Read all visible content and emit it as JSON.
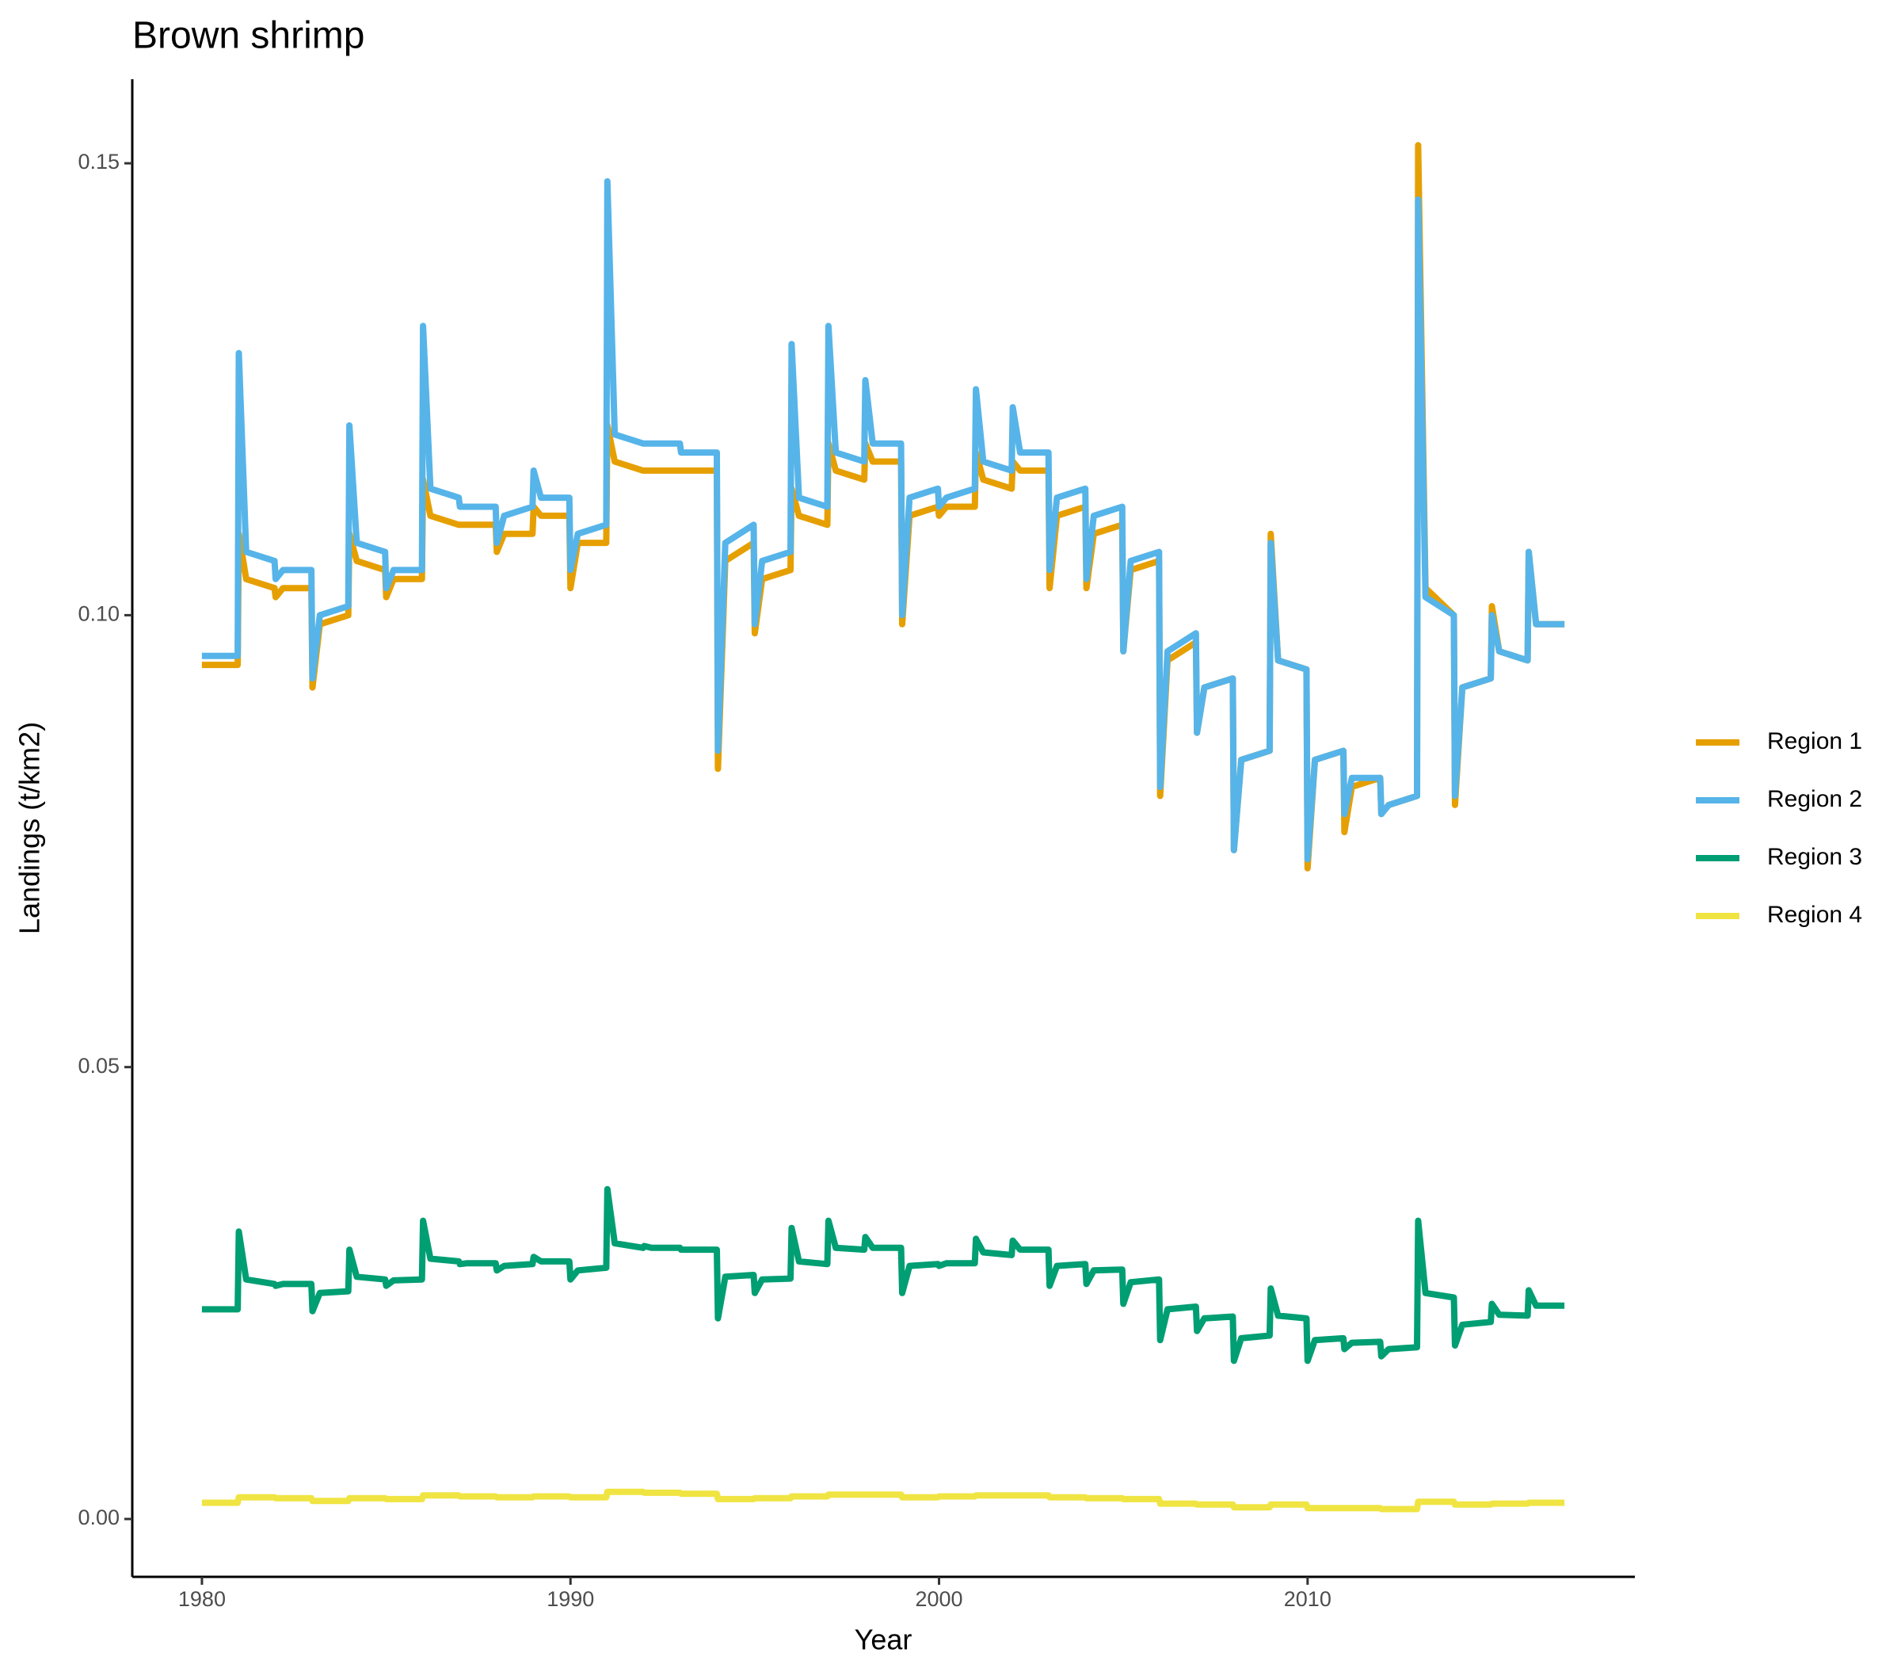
{
  "chart_data": {
    "type": "line",
    "title": "Brown shrimp",
    "x_label": "Year",
    "y_label": "Landings (t/km2)",
    "xlim": [
      1978.11,
      2018.88
    ],
    "ylim": [
      -0.0064,
      0.1593
    ],
    "xticks": [
      1980,
      1990,
      2000,
      2010
    ],
    "yticks": [
      {
        "value": 0,
        "label": "0.00"
      },
      {
        "value": 0.05,
        "label": "0.05"
      },
      {
        "value": 0.1,
        "label": "0.10"
      },
      {
        "value": 0.15,
        "label": "0.15"
      }
    ],
    "legend": "right",
    "x": [
      1980,
      1980.2,
      1980.97,
      1981,
      1981.2,
      1981.97,
      1982,
      1982.2,
      1982.97,
      1983,
      1983.2,
      1983.97,
      1984,
      1984.2,
      1984.97,
      1985,
      1985.2,
      1985.97,
      1986,
      1986.2,
      1986.97,
      1987,
      1987.2,
      1987.97,
      1988,
      1988.2,
      1988.97,
      1989,
      1989.2,
      1989.97,
      1990,
      1990.2,
      1990.97,
      1991,
      1991.2,
      1991.97,
      1992,
      1992.2,
      1992.97,
      1993,
      1993.2,
      1993.97,
      1994,
      1994.2,
      1994.97,
      1995,
      1995.2,
      1995.97,
      1996,
      1996.2,
      1996.97,
      1997,
      1997.2,
      1997.97,
      1998,
      1998.2,
      1998.97,
      1999,
      1999.2,
      1999.97,
      2000,
      2000.2,
      2000.97,
      2001,
      2001.2,
      2001.97,
      2002,
      2002.2,
      2002.97,
      2003,
      2003.2,
      2003.97,
      2004,
      2004.2,
      2004.97,
      2005,
      2005.2,
      2005.97,
      2006,
      2006.2,
      2006.97,
      2007,
      2007.2,
      2007.97,
      2008,
      2008.2,
      2008.97,
      2009,
      2009.2,
      2009.97,
      2010,
      2010.2,
      2010.97,
      2011,
      2011.2,
      2011.97,
      2012,
      2012.2,
      2012.97,
      2013,
      2013.2,
      2013.97,
      2014,
      2014.2,
      2014.97,
      2015,
      2015.2,
      2015.97,
      2016,
      2016.2,
      2016.97
    ],
    "series": [
      {
        "name": "Region 1",
        "color": "#e69f00",
        "values": [
          0.0945,
          0.0945,
          0.0945,
          0.109,
          0.104,
          0.103,
          0.102,
          0.103,
          0.103,
          0.092,
          0.099,
          0.1,
          0.109,
          0.106,
          0.105,
          0.102,
          0.104,
          0.104,
          0.115,
          0.111,
          0.11,
          0.11,
          0.11,
          0.11,
          0.107,
          0.109,
          0.109,
          0.112,
          0.111,
          0.111,
          0.103,
          0.108,
          0.108,
          0.121,
          0.117,
          0.116,
          0.116,
          0.116,
          0.116,
          0.116,
          0.116,
          0.116,
          0.083,
          0.106,
          0.108,
          0.098,
          0.104,
          0.105,
          0.114,
          0.111,
          0.11,
          0.119,
          0.116,
          0.115,
          0.119,
          0.117,
          0.117,
          0.099,
          0.111,
          0.112,
          0.111,
          0.112,
          0.112,
          0.118,
          0.115,
          0.114,
          0.117,
          0.116,
          0.116,
          0.103,
          0.111,
          0.112,
          0.103,
          0.109,
          0.11,
          0.096,
          0.105,
          0.106,
          0.08,
          0.095,
          0.097,
          0.087,
          0.092,
          0.093,
          0.074,
          0.084,
          0.085,
          0.109,
          0.095,
          0.094,
          0.072,
          0.084,
          0.085,
          0.076,
          0.081,
          0.082,
          0.078,
          0.079,
          0.08,
          0.152,
          0.103,
          0.1,
          0.079,
          0.092,
          0.093,
          0.101,
          0.096,
          0.095,
          0.107,
          0.099,
          0.099
        ]
      },
      {
        "name": "Region 2",
        "color": "#56b4e9",
        "values": [
          0.0955,
          0.0955,
          0.0955,
          0.129,
          0.107,
          0.106,
          0.104,
          0.105,
          0.105,
          0.093,
          0.1,
          0.101,
          0.121,
          0.108,
          0.107,
          0.103,
          0.105,
          0.105,
          0.132,
          0.114,
          0.113,
          0.112,
          0.112,
          0.112,
          0.108,
          0.111,
          0.112,
          0.116,
          0.113,
          0.113,
          0.105,
          0.109,
          0.11,
          0.148,
          0.12,
          0.119,
          0.119,
          0.119,
          0.119,
          0.118,
          0.118,
          0.118,
          0.085,
          0.108,
          0.11,
          0.099,
          0.106,
          0.107,
          0.13,
          0.113,
          0.112,
          0.132,
          0.118,
          0.117,
          0.126,
          0.119,
          0.119,
          0.1,
          0.113,
          0.114,
          0.112,
          0.113,
          0.114,
          0.125,
          0.117,
          0.116,
          0.123,
          0.118,
          0.118,
          0.105,
          0.113,
          0.114,
          0.104,
          0.111,
          0.112,
          0.096,
          0.106,
          0.107,
          0.081,
          0.096,
          0.098,
          0.087,
          0.092,
          0.093,
          0.074,
          0.084,
          0.085,
          0.108,
          0.095,
          0.094,
          0.073,
          0.084,
          0.085,
          0.078,
          0.082,
          0.082,
          0.078,
          0.079,
          0.08,
          0.146,
          0.102,
          0.1,
          0.08,
          0.092,
          0.093,
          0.1,
          0.096,
          0.095,
          0.107,
          0.099,
          0.099
        ]
      },
      {
        "name": "Region 3",
        "color": "#009e73",
        "values": [
          0.0232,
          0.0232,
          0.0232,
          0.0318,
          0.0265,
          0.026,
          0.0258,
          0.026,
          0.026,
          0.023,
          0.025,
          0.0252,
          0.0298,
          0.0268,
          0.0265,
          0.0258,
          0.0264,
          0.0265,
          0.033,
          0.0288,
          0.0285,
          0.0282,
          0.0283,
          0.0283,
          0.0275,
          0.028,
          0.0282,
          0.029,
          0.0285,
          0.0285,
          0.0265,
          0.0275,
          0.0278,
          0.0365,
          0.0305,
          0.03,
          0.0302,
          0.03,
          0.03,
          0.0298,
          0.0298,
          0.0298,
          0.0222,
          0.0268,
          0.027,
          0.025,
          0.0265,
          0.0266,
          0.0322,
          0.0285,
          0.0282,
          0.033,
          0.03,
          0.0298,
          0.0312,
          0.03,
          0.03,
          0.025,
          0.028,
          0.0282,
          0.028,
          0.0283,
          0.0283,
          0.031,
          0.0295,
          0.0292,
          0.0308,
          0.0298,
          0.0298,
          0.0258,
          0.028,
          0.0282,
          0.026,
          0.0275,
          0.0276,
          0.0238,
          0.0262,
          0.0265,
          0.0198,
          0.0232,
          0.0235,
          0.0208,
          0.0222,
          0.0224,
          0.0175,
          0.02,
          0.0203,
          0.0255,
          0.0225,
          0.0222,
          0.0175,
          0.0198,
          0.02,
          0.0188,
          0.0195,
          0.0196,
          0.018,
          0.0188,
          0.019,
          0.033,
          0.025,
          0.0245,
          0.0192,
          0.0215,
          0.0218,
          0.0238,
          0.0226,
          0.0225,
          0.0253,
          0.0236,
          0.0236
        ]
      },
      {
        "name": "Region 4",
        "color": "#f0e442",
        "values": [
          0.0018,
          0.0018,
          0.0018,
          0.0024,
          0.0024,
          0.0024,
          0.0023,
          0.0023,
          0.0023,
          0.002,
          0.002,
          0.002,
          0.0023,
          0.0023,
          0.0023,
          0.0022,
          0.0022,
          0.0022,
          0.0026,
          0.0026,
          0.0026,
          0.0025,
          0.0025,
          0.0025,
          0.0024,
          0.0024,
          0.0024,
          0.0025,
          0.0025,
          0.0025,
          0.0024,
          0.0024,
          0.0024,
          0.003,
          0.003,
          0.003,
          0.0029,
          0.0029,
          0.0029,
          0.0028,
          0.0028,
          0.0028,
          0.0022,
          0.0022,
          0.0022,
          0.0023,
          0.0023,
          0.0023,
          0.0025,
          0.0025,
          0.0025,
          0.0027,
          0.0027,
          0.0027,
          0.0027,
          0.0027,
          0.0027,
          0.0024,
          0.0024,
          0.0024,
          0.0025,
          0.0025,
          0.0025,
          0.0026,
          0.0026,
          0.0026,
          0.0026,
          0.0026,
          0.0026,
          0.0024,
          0.0024,
          0.0024,
          0.0023,
          0.0023,
          0.0023,
          0.0022,
          0.0022,
          0.0022,
          0.0017,
          0.0017,
          0.0017,
          0.0016,
          0.0016,
          0.0016,
          0.0013,
          0.0013,
          0.0013,
          0.0016,
          0.0016,
          0.0016,
          0.0012,
          0.0012,
          0.0012,
          0.0012,
          0.0012,
          0.0012,
          0.0011,
          0.0011,
          0.0011,
          0.0019,
          0.0019,
          0.0019,
          0.0016,
          0.0016,
          0.0016,
          0.0017,
          0.0017,
          0.0017,
          0.0018,
          0.0018,
          0.0018
        ]
      }
    ]
  }
}
